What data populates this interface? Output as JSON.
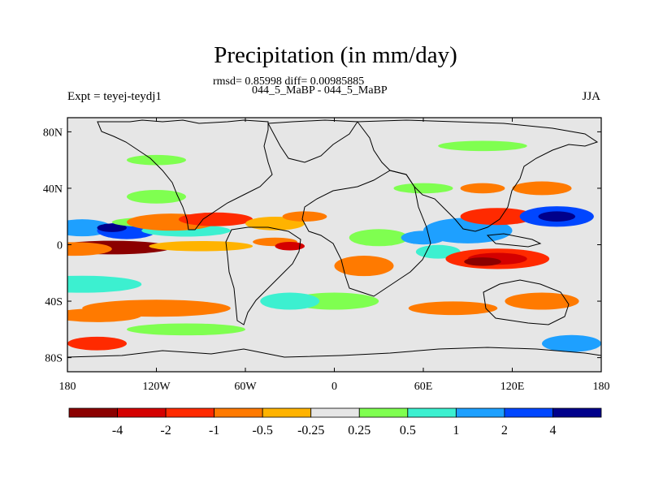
{
  "chart_data": {
    "type": "heatmap",
    "title": "Precipitation (in mm/day)",
    "stats_line": "rmsd= 0.85998 diff= 0.00985885",
    "comparison": "044_5_MaBP - 044_5_MaBP",
    "experiment": "Expt = teyej-teydj1",
    "season": "JJA",
    "x_ticks": [
      "180",
      "120W",
      "60W",
      "0",
      "60E",
      "120E",
      "180"
    ],
    "x_tick_values": [
      -180,
      -120,
      -60,
      0,
      60,
      120,
      180
    ],
    "y_ticks": [
      "80N",
      "40N",
      "0",
      "40S",
      "80S"
    ],
    "y_tick_values": [
      80,
      40,
      0,
      -40,
      -80
    ],
    "xlim": [
      -180,
      180
    ],
    "ylim": [
      -90,
      90
    ],
    "colorbar": {
      "levels": [
        "-4",
        "-2",
        "-1",
        "-0.5",
        "-0.25",
        "0.25",
        "0.5",
        "1",
        "2",
        "4"
      ],
      "colors": [
        "#8b0000",
        "#d40000",
        "#ff2a00",
        "#ff7a00",
        "#ffb300",
        "#e6e6e6",
        "#7fff50",
        "#3cf0d0",
        "#1ea0ff",
        "#0046ff",
        "#00008b"
      ]
    },
    "regions": [
      {
        "lon": -170,
        "lat": 12,
        "w": 40,
        "h": 10,
        "bin": 8
      },
      {
        "lon": -140,
        "lat": 10,
        "w": 40,
        "h": 10,
        "bin": 9
      },
      {
        "lon": -150,
        "lat": 12,
        "w": 20,
        "h": 5,
        "bin": 10
      },
      {
        "lon": -100,
        "lat": 10,
        "w": 60,
        "h": 7,
        "bin": 7
      },
      {
        "lon": -120,
        "lat": 16,
        "w": 60,
        "h": 6,
        "bin": 6
      },
      {
        "lon": -150,
        "lat": -2,
        "w": 80,
        "h": 8,
        "bin": 0
      },
      {
        "lon": -175,
        "lat": -3,
        "w": 50,
        "h": 8,
        "bin": 3
      },
      {
        "lon": -90,
        "lat": -1,
        "w": 70,
        "h": 6,
        "bin": 4
      },
      {
        "lon": -110,
        "lat": 16,
        "w": 60,
        "h": 10,
        "bin": 3
      },
      {
        "lon": -80,
        "lat": 18,
        "w": 50,
        "h": 8,
        "bin": 2
      },
      {
        "lon": -40,
        "lat": 15,
        "w": 40,
        "h": 8,
        "bin": 4
      },
      {
        "lon": -20,
        "lat": 20,
        "w": 30,
        "h": 6,
        "bin": 3
      },
      {
        "lon": -40,
        "lat": 2,
        "w": 30,
        "h": 5,
        "bin": 3
      },
      {
        "lon": -30,
        "lat": -1,
        "w": 20,
        "h": 5,
        "bin": 1
      },
      {
        "lon": 20,
        "lat": -15,
        "w": 40,
        "h": 12,
        "bin": 3
      },
      {
        "lon": 30,
        "lat": 5,
        "w": 40,
        "h": 10,
        "bin": 6
      },
      {
        "lon": 60,
        "lat": 5,
        "w": 30,
        "h": 8,
        "bin": 8
      },
      {
        "lon": 70,
        "lat": -5,
        "w": 30,
        "h": 8,
        "bin": 7
      },
      {
        "lon": 110,
        "lat": -10,
        "w": 70,
        "h": 12,
        "bin": 2
      },
      {
        "lon": 110,
        "lat": -10,
        "w": 40,
        "h": 7,
        "bin": 1
      },
      {
        "lon": 100,
        "lat": -12,
        "w": 25,
        "h": 5,
        "bin": 0
      },
      {
        "lon": 90,
        "lat": 10,
        "w": 60,
        "h": 15,
        "bin": 8
      },
      {
        "lon": 110,
        "lat": 20,
        "w": 50,
        "h": 10,
        "bin": 2
      },
      {
        "lon": 150,
        "lat": 20,
        "w": 50,
        "h": 12,
        "bin": 9
      },
      {
        "lon": 150,
        "lat": 20,
        "w": 25,
        "h": 6,
        "bin": 10
      },
      {
        "lon": 140,
        "lat": 40,
        "w": 40,
        "h": 8,
        "bin": 3
      },
      {
        "lon": 100,
        "lat": 40,
        "w": 30,
        "h": 6,
        "bin": 3
      },
      {
        "lon": -120,
        "lat": 34,
        "w": 40,
        "h": 8,
        "bin": 6
      },
      {
        "lon": -170,
        "lat": -28,
        "w": 80,
        "h": 10,
        "bin": 7
      },
      {
        "lon": -120,
        "lat": -45,
        "w": 100,
        "h": 10,
        "bin": 3
      },
      {
        "lon": -160,
        "lat": -50,
        "w": 60,
        "h": 8,
        "bin": 3
      },
      {
        "lon": -100,
        "lat": -60,
        "w": 80,
        "h": 7,
        "bin": 6
      },
      {
        "lon": 80,
        "lat": -45,
        "w": 60,
        "h": 8,
        "bin": 3
      },
      {
        "lon": 140,
        "lat": -40,
        "w": 50,
        "h": 10,
        "bin": 3
      },
      {
        "lon": 0,
        "lat": -40,
        "w": 60,
        "h": 10,
        "bin": 6
      },
      {
        "lon": -30,
        "lat": -40,
        "w": 40,
        "h": 10,
        "bin": 7
      },
      {
        "lon": 160,
        "lat": -70,
        "w": 40,
        "h": 10,
        "bin": 8
      },
      {
        "lon": -160,
        "lat": -70,
        "w": 40,
        "h": 8,
        "bin": 2
      },
      {
        "lon": 60,
        "lat": 40,
        "w": 40,
        "h": 6,
        "bin": 6
      },
      {
        "lon": -120,
        "lat": 60,
        "w": 40,
        "h": 6,
        "bin": 6
      },
      {
        "lon": 100,
        "lat": 70,
        "w": 60,
        "h": 6,
        "bin": 6
      }
    ]
  }
}
